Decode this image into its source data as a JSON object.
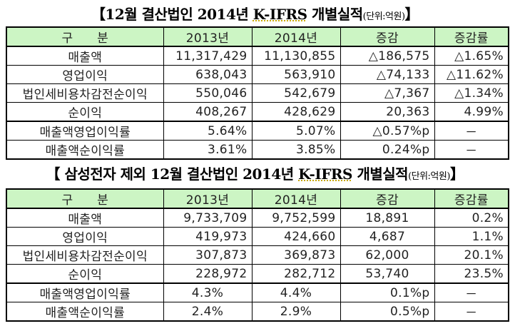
{
  "table1": {
    "title": "【12월 결산법인 2014년 K-IFRS 개별실적",
    "title_prefix": "【12월 결산법인 2014년 ",
    "title_kifrs": "K-IFRS",
    "title_suffix": " 개별실적",
    "unit": "(단위:억원)",
    "close_bracket": "】",
    "headers": [
      "구    분",
      "2013년",
      "2014년",
      "증감",
      "증감률"
    ],
    "rows": [
      {
        "label": "매출액",
        "y2013": "11,317,429",
        "y2014": "11,130,855",
        "change": "△186,575",
        "rate": "△1.65%"
      },
      {
        "label": "영업이익",
        "y2013": "638,043",
        "y2014": "563,910",
        "change": "△74,133",
        "rate": "△11.62%"
      },
      {
        "label": "법인세비용차감전순이익",
        "y2013": "550,046",
        "y2014": "542,679",
        "change": "△7,367",
        "rate": "△1.34%"
      },
      {
        "label": "순이익",
        "y2013": "408,267",
        "y2014": "428,629",
        "change": "20,363",
        "rate": "4.99%"
      },
      {
        "label": "매출액영업이익률",
        "y2013": "5.64%",
        "y2014": "5.07%",
        "change": "△0.57%p",
        "rate": "－"
      },
      {
        "label": "매출액순이익률",
        "y2013": "3.61%",
        "y2014": "3.85%",
        "change": "0.24%p",
        "rate": "－"
      }
    ]
  },
  "table2": {
    "title_prefix": "【 삼성전자 제외 12월 결산법인 2014년 ",
    "title_kifrs": "K-IFRS",
    "title_suffix": " 개별실적",
    "unit": "(단위:억원)",
    "close_bracket": "】",
    "headers": [
      "구    분",
      "2013년",
      "2014년",
      "증감",
      "증감률"
    ],
    "rows": [
      {
        "label": "매출액",
        "y2013": "9,733,709",
        "y2014": "9,752,599",
        "change": "18,891",
        "rate": "0.2%"
      },
      {
        "label": "영업이익",
        "y2013": "419,973",
        "y2014": "424,660",
        "change": "4,687",
        "rate": "1.1%"
      },
      {
        "label": "법인세비용차감전순이익",
        "y2013": "307,873",
        "y2014": "369,873",
        "change": "62,000",
        "rate": "20.1%"
      },
      {
        "label": "순이익",
        "y2013": "228,972",
        "y2014": "282,712",
        "change": "53,740",
        "rate": "23.5%"
      },
      {
        "label": "매출액영업이익률",
        "y2013": "4.3%",
        "y2014": "4.4%",
        "change": "0.1%p",
        "rate": "－"
      },
      {
        "label": "매출액순이익률",
        "y2013": "2.4%",
        "y2014": "2.9%",
        "change": "0.5%p",
        "rate": "－"
      }
    ]
  },
  "colors": {
    "header_bg": "#ccf5c4",
    "border": "#000000"
  }
}
